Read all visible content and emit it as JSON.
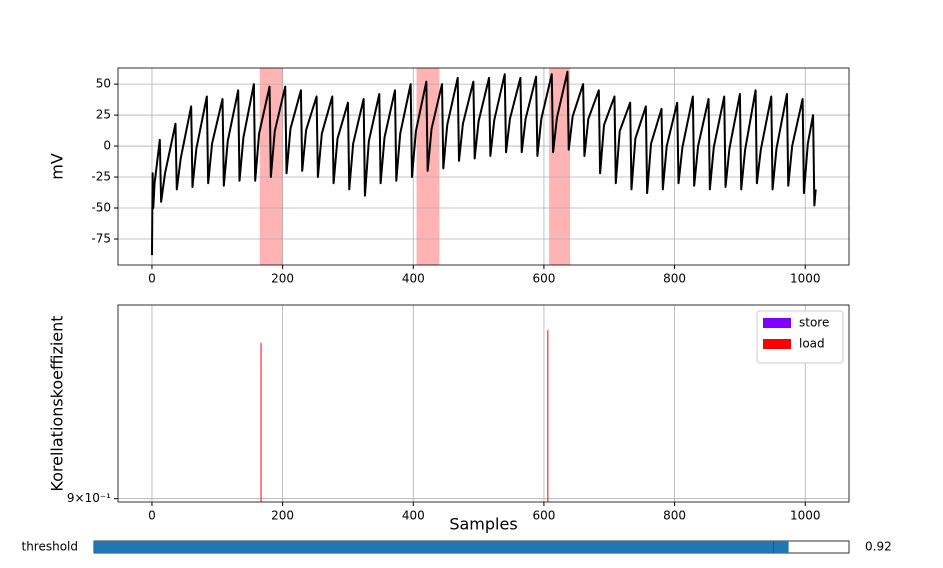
{
  "chart_data": [
    {
      "type": "line",
      "ylabel": "mV",
      "xlim": [
        -52,
        1067
      ],
      "xticks": [
        0,
        200,
        400,
        600,
        800,
        1000
      ],
      "ylim": [
        -96,
        63
      ],
      "yticks": [
        -75,
        -50,
        -25,
        0,
        25,
        50
      ],
      "grid": true,
      "spans": [
        [
          165,
          200
        ],
        [
          405,
          440
        ],
        [
          608,
          640
        ]
      ],
      "span_color": "#ffb3b3",
      "series": [
        {
          "color": "#000000",
          "x": [
            0,
            1,
            2,
            4,
            12,
            14,
            20,
            36,
            38,
            44,
            60,
            62,
            68,
            84,
            86,
            92,
            108,
            110,
            116,
            132,
            134,
            140,
            156,
            158,
            164,
            180,
            182,
            188,
            204,
            206,
            212,
            228,
            230,
            236,
            252,
            254,
            260,
            276,
            278,
            284,
            300,
            302,
            308,
            324,
            326,
            332,
            348,
            350,
            356,
            372,
            374,
            380,
            396,
            398,
            404,
            420,
            422,
            428,
            444,
            446,
            452,
            468,
            470,
            476,
            492,
            494,
            500,
            516,
            518,
            524,
            540,
            542,
            548,
            564,
            566,
            572,
            588,
            590,
            596,
            612,
            614,
            620,
            636,
            638,
            644,
            660,
            662,
            668,
            684,
            686,
            692,
            708,
            710,
            716,
            732,
            734,
            740,
            756,
            758,
            764,
            780,
            782,
            788,
            804,
            806,
            812,
            828,
            830,
            836,
            852,
            854,
            860,
            876,
            878,
            884,
            900,
            902,
            908,
            924,
            926,
            932,
            948,
            950,
            956,
            972,
            974,
            980,
            996,
            998,
            1004,
            1012,
            1014,
            1016
          ],
          "values": [
            -88,
            -22,
            -50,
            -30,
            5,
            -45,
            -22,
            18,
            -35,
            -10,
            32,
            -33,
            -2,
            40,
            -30,
            2,
            38,
            -32,
            4,
            45,
            -28,
            7,
            50,
            -28,
            10,
            48,
            -25,
            12,
            48,
            -22,
            14,
            45,
            -20,
            13,
            40,
            -25,
            10,
            40,
            -30,
            6,
            35,
            -35,
            2,
            38,
            -40,
            4,
            42,
            -30,
            7,
            45,
            -28,
            10,
            50,
            -25,
            12,
            52,
            -20,
            14,
            50,
            -18,
            17,
            55,
            -12,
            18,
            52,
            -10,
            20,
            55,
            -8,
            21,
            58,
            -5,
            22,
            55,
            -5,
            22,
            56,
            -8,
            22,
            58,
            -5,
            23,
            60,
            -3,
            24,
            50,
            -8,
            22,
            45,
            -22,
            17,
            40,
            -30,
            12,
            35,
            -35,
            6,
            32,
            -38,
            2,
            30,
            -35,
            0,
            35,
            -30,
            -1,
            40,
            -32,
            0,
            38,
            -35,
            -1,
            40,
            -33,
            -2,
            42,
            -35,
            -3,
            45,
            -30,
            -3,
            40,
            -35,
            -2,
            42,
            -32,
            0,
            38,
            -38,
            2,
            25,
            -48,
            -35
          ]
        }
      ]
    },
    {
      "type": "vlines",
      "xlabel": "Samples",
      "ylabel": "Korellationskoeffizient",
      "xlim": [
        -52,
        1067
      ],
      "xticks": [
        0,
        200,
        400,
        600,
        800,
        1000
      ],
      "ylim": [
        0.899,
        0.96
      ],
      "yscale": "log",
      "yticks": [
        {
          "value": 0.9,
          "label": "9×10⁻¹"
        }
      ],
      "grid": true,
      "legend": "upper right",
      "series": [
        {
          "name": "store",
          "color": "#8000ff",
          "x": [],
          "values": []
        },
        {
          "name": "load",
          "color": "#ff0000",
          "x": [
            167,
            606
          ],
          "values": [
            0.948,
            0.952
          ]
        }
      ]
    }
  ],
  "slider": {
    "label": "threshold",
    "value": 0.92,
    "valinit": 0.9,
    "range": [
      0,
      1
    ],
    "color": "#1f77b4"
  }
}
